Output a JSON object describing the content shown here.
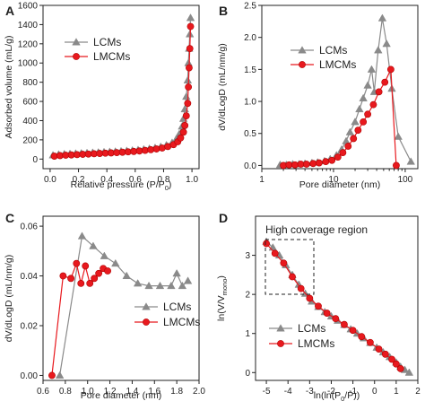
{
  "chart_data": [
    {
      "panel": "A",
      "type": "line",
      "xlabel": "Relative pressure (P/P",
      "xlabel_sub": "0",
      "xlabel_tail": ")",
      "ylabel": "Adsorbed volume (mL/g)",
      "xlim": [
        -0.05,
        1.05
      ],
      "ylim": [
        -100,
        1600
      ],
      "x_ticks": [
        0.0,
        0.2,
        0.4,
        0.6,
        0.8,
        1.0
      ],
      "x_tick_labels": [
        "0.0",
        "0.2",
        "0.4",
        "0.6",
        "0.8",
        "1.0"
      ],
      "y_ticks": [
        0,
        200,
        400,
        600,
        800,
        1000,
        1200,
        1400,
        1600
      ],
      "y_tick_labels": [
        "0",
        "200",
        "400",
        "600",
        "800",
        "1000",
        "1200",
        "1400",
        "1600"
      ],
      "legend_position": "upper-left",
      "series": [
        {
          "name": "LCMs",
          "color": "#8a8a8a",
          "marker": "triangle",
          "x": [
            0.02,
            0.06,
            0.1,
            0.14,
            0.18,
            0.22,
            0.26,
            0.3,
            0.34,
            0.38,
            0.42,
            0.46,
            0.5,
            0.54,
            0.58,
            0.62,
            0.66,
            0.7,
            0.74,
            0.78,
            0.82,
            0.86,
            0.89,
            0.91,
            0.93,
            0.94,
            0.95,
            0.96,
            0.97,
            0.975,
            0.98,
            0.985,
            0.99
          ],
          "y": [
            40,
            48,
            52,
            55,
            58,
            61,
            64,
            67,
            70,
            73,
            76,
            79,
            82,
            86,
            90,
            95,
            101,
            108,
            117,
            128,
            145,
            170,
            210,
            260,
            340,
            420,
            520,
            650,
            820,
            1000,
            1150,
            1300,
            1470
          ]
        },
        {
          "name": "LMCMs",
          "color": "#e8191e",
          "marker": "circle",
          "x": [
            0.03,
            0.07,
            0.11,
            0.15,
            0.19,
            0.23,
            0.27,
            0.31,
            0.35,
            0.39,
            0.43,
            0.47,
            0.51,
            0.55,
            0.59,
            0.63,
            0.67,
            0.71,
            0.75,
            0.79,
            0.83,
            0.87,
            0.9,
            0.92,
            0.94,
            0.95,
            0.96,
            0.97,
            0.975,
            0.98,
            0.985,
            0.99
          ],
          "y": [
            30,
            36,
            40,
            43,
            46,
            49,
            52,
            55,
            58,
            61,
            64,
            67,
            71,
            75,
            79,
            84,
            90,
            97,
            105,
            115,
            130,
            150,
            180,
            220,
            280,
            350,
            450,
            580,
            750,
            950,
            1150,
            1380
          ]
        }
      ]
    },
    {
      "panel": "B",
      "type": "line",
      "xscale": "log",
      "xlabel": "Pore diameter (nm)",
      "ylabel": "dV/dLogD (mL/nm/g)",
      "xlim": [
        1,
        150
      ],
      "ylim": [
        -0.05,
        2.5
      ],
      "x_ticks": [
        1,
        10,
        100
      ],
      "x_tick_labels": [
        "1",
        "10",
        "100"
      ],
      "y_ticks": [
        0.0,
        0.5,
        1.0,
        1.5,
        2.0,
        2.5
      ],
      "y_tick_labels": [
        "0.0",
        "0.5",
        "1.0",
        "1.5",
        "2.0",
        "2.5"
      ],
      "legend_position": "top-center",
      "series": [
        {
          "name": "LCMs",
          "color": "#8a8a8a",
          "marker": "triangle",
          "x": [
            1.8,
            2.2,
            2.7,
            3.3,
            4,
            5,
            6,
            7.5,
            9,
            11,
            13,
            15,
            17,
            20,
            23,
            26,
            30,
            34,
            37,
            42,
            48,
            55,
            65,
            80,
            120
          ],
          "y": [
            0.01,
            0.01,
            0.02,
            0.02,
            0.03,
            0.04,
            0.05,
            0.07,
            0.1,
            0.16,
            0.25,
            0.38,
            0.52,
            0.68,
            0.88,
            1.05,
            1.25,
            1.5,
            1.15,
            1.8,
            2.3,
            1.9,
            1.2,
            0.45,
            0.06
          ]
        },
        {
          "name": "LMCMs",
          "color": "#e8191e",
          "marker": "circle",
          "x": [
            2,
            2.4,
            2.9,
            3.5,
            4.2,
            5.2,
            6.3,
            7.8,
            9.5,
            11.5,
            13.5,
            16,
            19,
            22,
            26,
            30,
            36,
            43,
            52,
            63,
            75
          ],
          "y": [
            0.0,
            0.01,
            0.01,
            0.02,
            0.02,
            0.03,
            0.04,
            0.06,
            0.08,
            0.13,
            0.2,
            0.3,
            0.42,
            0.55,
            0.68,
            0.8,
            0.95,
            1.15,
            1.3,
            1.5,
            0.0
          ]
        }
      ]
    },
    {
      "panel": "C",
      "type": "line",
      "xlabel": "Pore diameter (nm)",
      "ylabel": "dV/dLogD (mL/nm/g)",
      "xlim": [
        0.6,
        2.0
      ],
      "ylim": [
        -0.002,
        0.064
      ],
      "x_ticks": [
        0.6,
        0.8,
        1.0,
        1.2,
        1.4,
        1.6,
        1.8,
        2.0
      ],
      "x_tick_labels": [
        "0.6",
        "0.8",
        "1.0",
        "1.2",
        "1.4",
        "1.6",
        "1.8",
        "2.0"
      ],
      "y_ticks": [
        0.0,
        0.02,
        0.04,
        0.06
      ],
      "y_tick_labels": [
        "0.00",
        "0.02",
        "0.04",
        "0.06"
      ],
      "legend_position": "lower-right",
      "series": [
        {
          "name": "LCMs",
          "color": "#8a8a8a",
          "marker": "triangle",
          "x": [
            0.75,
            0.95,
            1.05,
            1.15,
            1.25,
            1.35,
            1.45,
            1.55,
            1.65,
            1.75,
            1.8,
            1.85,
            1.9
          ],
          "y": [
            0.0,
            0.056,
            0.052,
            0.048,
            0.045,
            0.04,
            0.037,
            0.036,
            0.036,
            0.036,
            0.041,
            0.036,
            0.038
          ]
        },
        {
          "name": "LMCMs",
          "color": "#e8191e",
          "marker": "circle",
          "x": [
            0.68,
            0.78,
            0.85,
            0.9,
            0.94,
            0.98,
            1.02,
            1.06,
            1.1,
            1.14,
            1.18
          ],
          "y": [
            0.0,
            0.04,
            0.039,
            0.045,
            0.037,
            0.044,
            0.037,
            0.039,
            0.041,
            0.043,
            0.042
          ]
        }
      ]
    },
    {
      "panel": "D",
      "type": "scatter",
      "xlabel": "ln(ln(P",
      "xlabel_sub": "0",
      "xlabel_tail": "/P))",
      "ylabel": "ln(V/V",
      "ylabel_sub": "mono",
      "ylabel_tail": ")",
      "xlim": [
        -5.5,
        2.0
      ],
      "ylim": [
        -0.2,
        4.0
      ],
      "x_ticks": [
        -5,
        -4,
        -3,
        -2,
        -1,
        0,
        1,
        2
      ],
      "x_tick_labels": [
        "-5",
        "-4",
        "-3",
        "-2",
        "-1",
        "0",
        "1",
        "2"
      ],
      "y_ticks": [
        0,
        1,
        2,
        3
      ],
      "y_tick_labels": [
        "0",
        "1",
        "2",
        "3"
      ],
      "annotation": "High coverage region",
      "legend_position": "lower-left",
      "series": [
        {
          "name": "LCMs",
          "color": "#8a8a8a",
          "marker": "triangle",
          "x": [
            -5.0,
            -4.7,
            -4.4,
            -4.1,
            -3.8,
            -3.5,
            -3.2,
            -2.9,
            -2.6,
            -2.3,
            -2.0,
            -1.7,
            -1.4,
            -1.1,
            -0.8,
            -0.5,
            -0.2,
            0.1,
            0.4,
            0.7,
            1.0,
            1.2,
            1.4,
            1.6
          ],
          "y": [
            3.35,
            3.2,
            3.0,
            2.75,
            2.5,
            2.25,
            2.02,
            1.82,
            1.68,
            1.55,
            1.44,
            1.33,
            1.22,
            1.11,
            1.0,
            0.88,
            0.76,
            0.64,
            0.52,
            0.4,
            0.26,
            0.15,
            0.07,
            0.0
          ]
        },
        {
          "name": "LMCMs",
          "color": "#e8191e",
          "marker": "circle",
          "x": [
            -5.0,
            -4.6,
            -4.2,
            -3.8,
            -3.4,
            -3.0,
            -2.6,
            -2.2,
            -1.8,
            -1.4,
            -1.0,
            -0.6,
            -0.2,
            0.2,
            0.5,
            0.8,
            1.0,
            1.2
          ],
          "y": [
            3.3,
            3.05,
            2.8,
            2.45,
            2.15,
            1.9,
            1.7,
            1.52,
            1.38,
            1.23,
            1.08,
            0.92,
            0.77,
            0.6,
            0.47,
            0.34,
            0.22,
            0.1
          ]
        }
      ]
    }
  ]
}
